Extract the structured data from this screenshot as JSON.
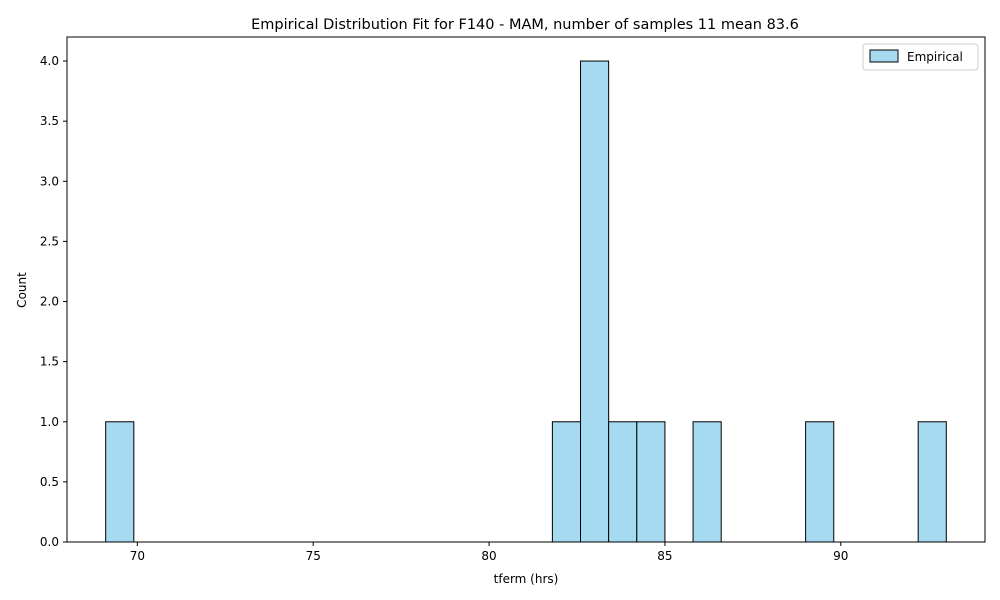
{
  "chart_data": {
    "type": "bar",
    "title": "Empirical Distribution Fit for F140 - MAM, number of samples 11 mean 83.6",
    "xlabel": "tferm (hrs)",
    "ylabel": "Count",
    "xlim": [
      68.0,
      94.1
    ],
    "ylim": [
      0,
      4.2
    ],
    "xticks": [
      70,
      75,
      80,
      85,
      90
    ],
    "xtick_labels": [
      "70",
      "75",
      "80",
      "85",
      "90"
    ],
    "yticks": [
      0,
      0.5,
      1,
      1.5,
      2,
      2.5,
      3,
      3.5,
      4
    ],
    "ytick_labels": [
      "0.0",
      "0.5",
      "1.0",
      "1.5",
      "2.0",
      "2.5",
      "3.0",
      "3.5",
      "4.0"
    ],
    "bar_color": "#a6daf0",
    "edge_color": "#000000",
    "legend": {
      "position": "top-right",
      "entries": [
        "Empirical"
      ]
    },
    "series": [
      {
        "name": "Empirical",
        "bins": [
          {
            "x0": 69.1,
            "x1": 69.9,
            "count": 1
          },
          {
            "x0": 81.8,
            "x1": 82.6,
            "count": 1
          },
          {
            "x0": 82.6,
            "x1": 83.4,
            "count": 4
          },
          {
            "x0": 83.4,
            "x1": 84.2,
            "count": 1
          },
          {
            "x0": 84.2,
            "x1": 85.0,
            "count": 1
          },
          {
            "x0": 85.8,
            "x1": 86.6,
            "count": 1
          },
          {
            "x0": 89.0,
            "x1": 89.8,
            "count": 1
          },
          {
            "x0": 92.2,
            "x1": 93.0,
            "count": 1
          }
        ]
      }
    ]
  }
}
